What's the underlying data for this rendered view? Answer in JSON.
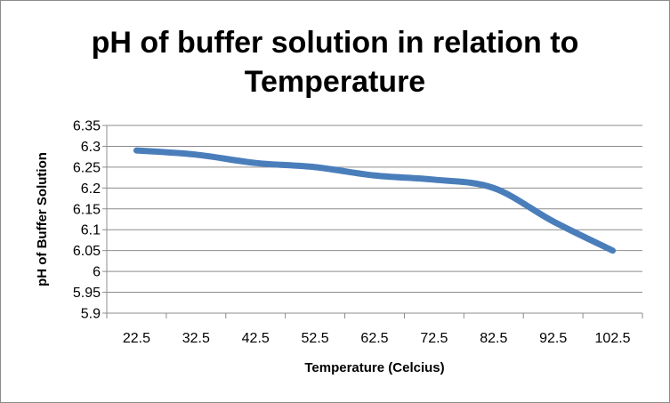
{
  "chart_data": {
    "type": "line",
    "title_line1": "pH of buffer solution in relation to",
    "title_line2": "Temperature",
    "xlabel": "Temperature (Celcius)",
    "ylabel": "pH of Buffer Solution",
    "categories": [
      "22.5",
      "32.5",
      "42.5",
      "52.5",
      "62.5",
      "72.5",
      "82.5",
      "92.5",
      "102.5"
    ],
    "y_ticks": [
      "5.9",
      "5.95",
      "6",
      "6.05",
      "6.1",
      "6.15",
      "6.2",
      "6.25",
      "6.3",
      "6.35"
    ],
    "ylim": [
      5.9,
      6.35
    ],
    "grid": true,
    "legend": "none",
    "series": [
      {
        "values": [
          6.29,
          6.28,
          6.26,
          6.25,
          6.23,
          6.22,
          6.2,
          6.12,
          6.05
        ],
        "color": "#4a7ebb"
      }
    ]
  }
}
